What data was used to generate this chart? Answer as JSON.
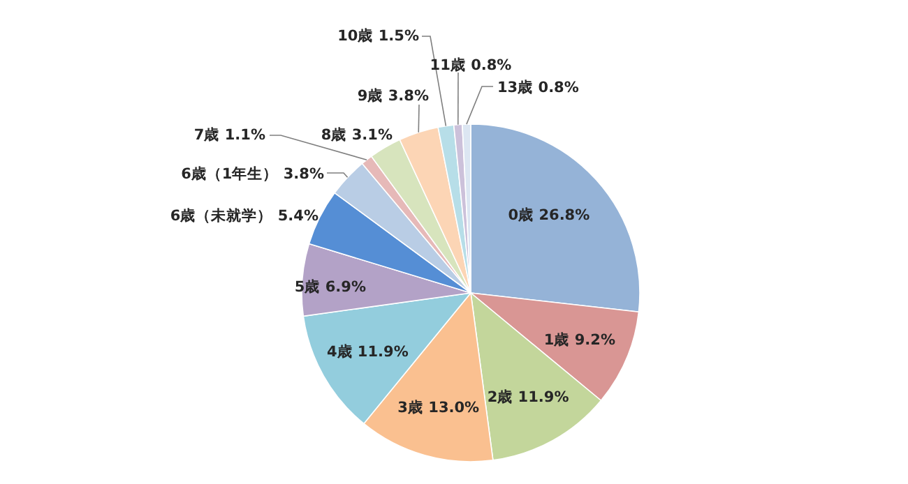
{
  "chart_data": {
    "type": "pie",
    "categories": [
      "0歳",
      "1歳",
      "2歳",
      "3歳",
      "4歳",
      "5歳",
      "6歳（未就学）",
      "6歳（1年生）",
      "7歳",
      "8歳",
      "9歳",
      "10歳",
      "11歳",
      "13歳"
    ],
    "values": [
      26.8,
      9.2,
      11.9,
      13.0,
      11.9,
      6.9,
      5.4,
      3.8,
      1.1,
      3.1,
      3.8,
      1.5,
      0.8,
      0.8
    ],
    "value_labels": [
      "26.8%",
      "9.2%",
      "11.9%",
      "13.0%",
      "11.9%",
      "6.9%",
      "5.4%",
      "3.8%",
      "1.1%",
      "3.1%",
      "3.8%",
      "1.5%",
      "0.8%",
      "0.8%"
    ],
    "colors": [
      "#95b3d7",
      "#d99694",
      "#c3d69b",
      "#fac090",
      "#93cddd",
      "#b3a2c7",
      "#558ed5",
      "#b9cde5",
      "#e6b9b8",
      "#d7e4bd",
      "#fcd5b5",
      "#b7dee8",
      "#ccc1da",
      "#dce6f2"
    ],
    "legend": false
  }
}
